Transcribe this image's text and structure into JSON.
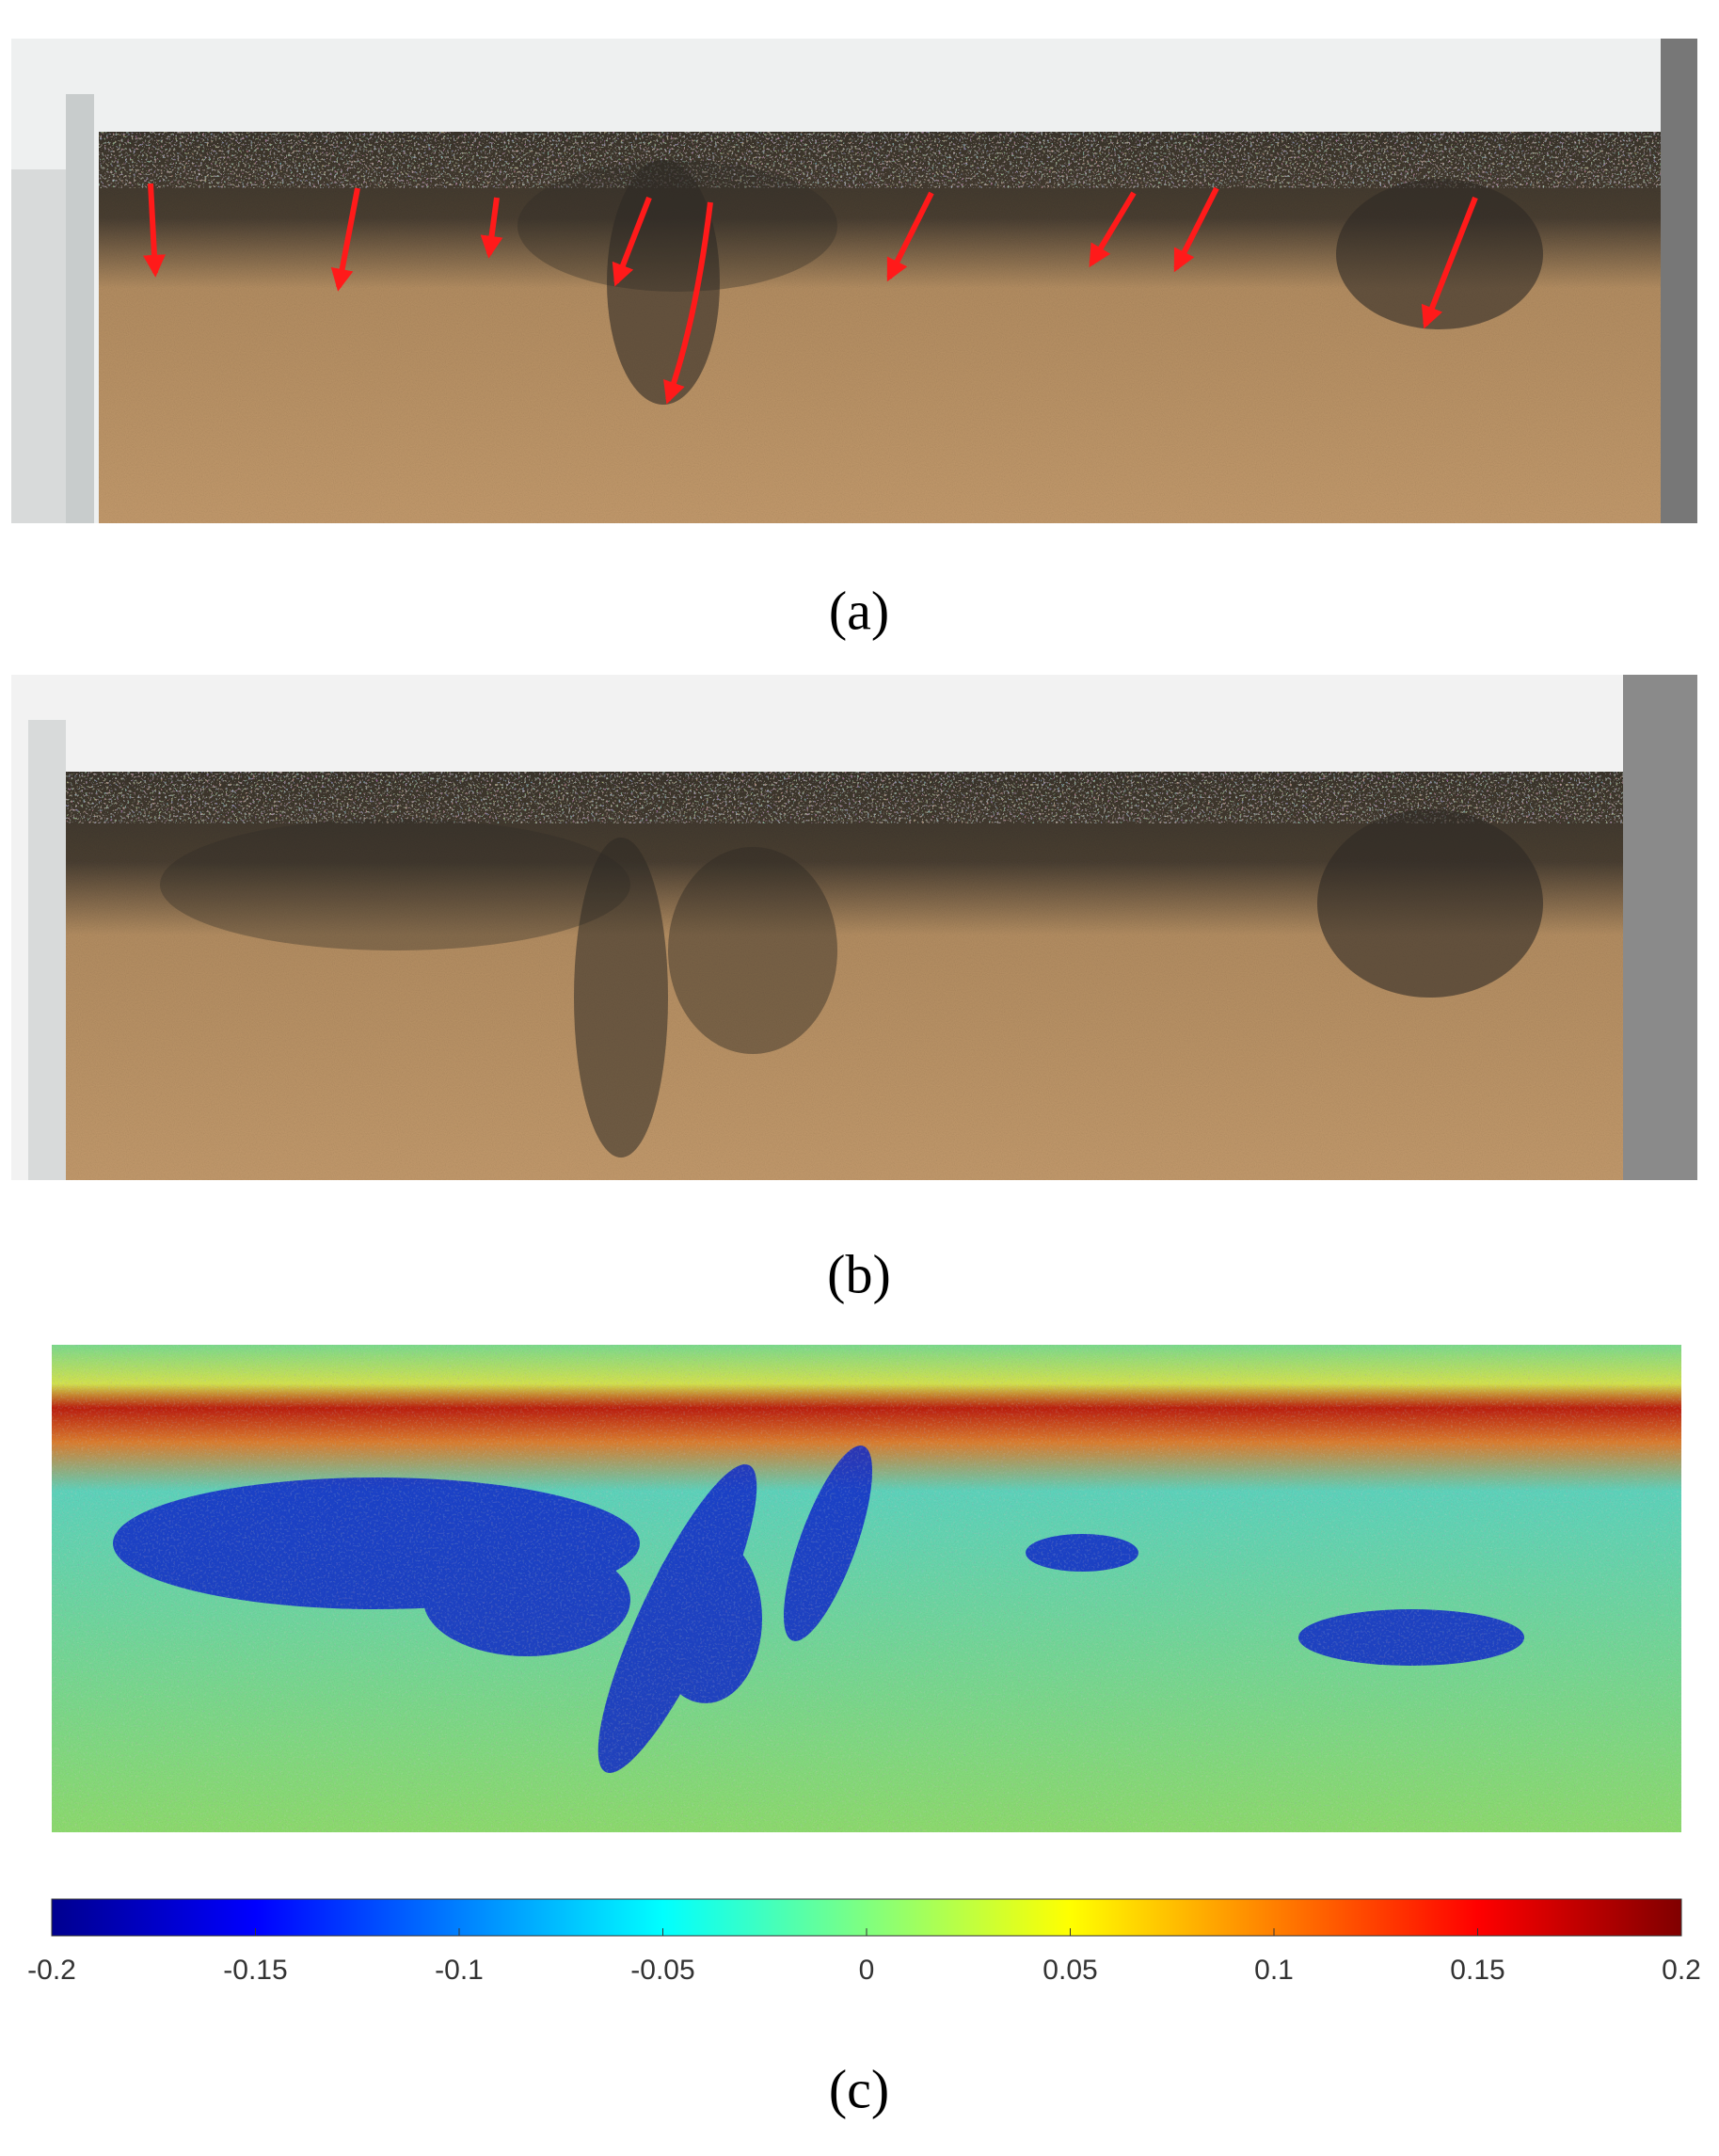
{
  "panels": [
    {
      "label": "(a)"
    },
    {
      "label": "(b)"
    },
    {
      "label": "(c)"
    }
  ],
  "colorbar": {
    "colormap": "jet",
    "lim": [
      -0.2,
      0.2
    ],
    "ticks": [
      -0.2,
      -0.15,
      -0.1,
      -0.05,
      0,
      0.05,
      0.1,
      0.15,
      0.2
    ]
  }
}
